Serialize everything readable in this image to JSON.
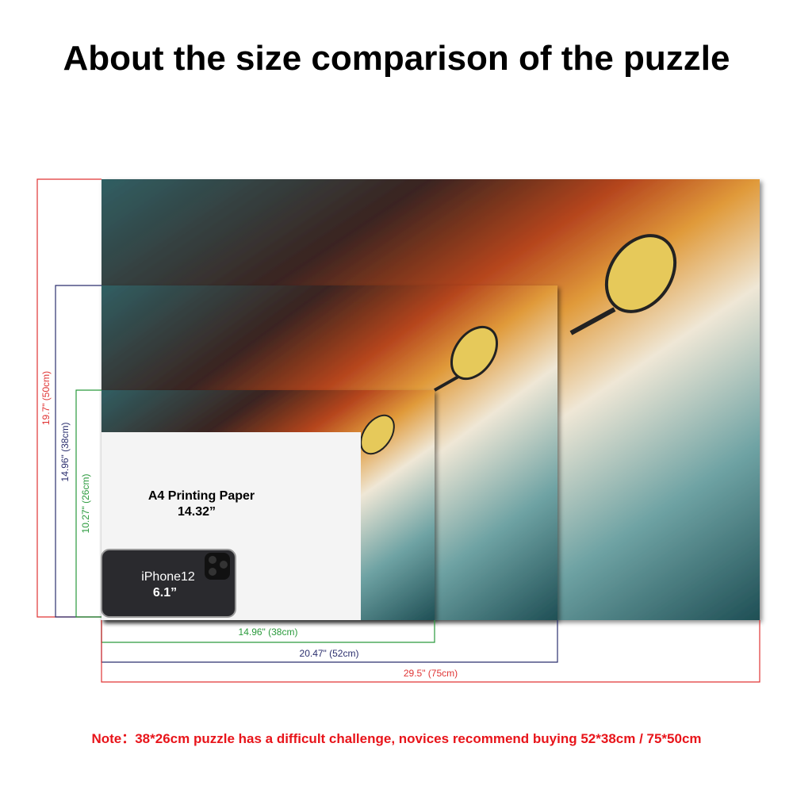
{
  "title": "About the size comparison of the puzzle",
  "heights": [
    "19.7\" (50cm)",
    "14.96\" (38cm)",
    "10.27\" (26cm)"
  ],
  "widths": [
    "14.96\" (38cm)",
    "20.47\" (52cm)",
    "29.5\" (75cm)"
  ],
  "paper": {
    "name": "A4 Printing Paper",
    "size": "14.32”"
  },
  "phone": {
    "name": "iPhone12",
    "size": "6.1”"
  },
  "note": "Note：38*26cm puzzle has a difficult challenge, novices recommend buying 52*38cm / 75*50cm"
}
